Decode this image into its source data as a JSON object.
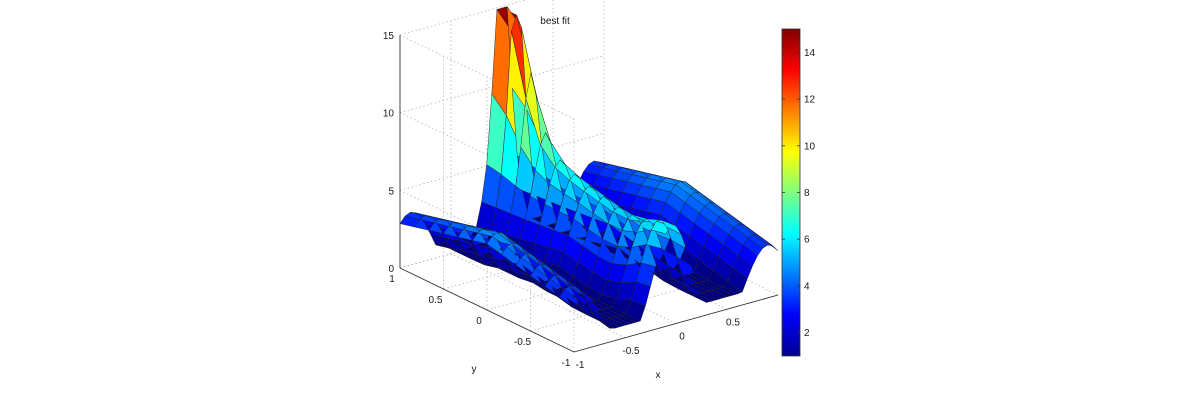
{
  "chart_data": {
    "type": "surface",
    "title": "best fit",
    "xlabel": "x",
    "ylabel": "y",
    "zlabel": "",
    "xlim": [
      -1,
      1
    ],
    "ylim": [
      -1,
      1
    ],
    "zlim": [
      0,
      15
    ],
    "x_ticks": [
      "-1",
      "-0.5",
      "0",
      "0.5",
      "1"
    ],
    "y_ticks": [
      "-1",
      "-0.5",
      "0",
      "0.5",
      "1"
    ],
    "z_ticks": [
      "0",
      "5",
      "10",
      "15"
    ],
    "grid": true,
    "colormap": "jet",
    "colorbar": {
      "location": "right",
      "range": [
        1,
        15
      ],
      "ticks": [
        "2",
        "4",
        "6",
        "8",
        "10",
        "12",
        "14"
      ]
    },
    "surface_features": [
      {
        "description": "peak",
        "x": 0,
        "y": 1,
        "z": 14.5
      },
      {
        "description": "peak",
        "x": -0.2,
        "y": -1,
        "z": 5.5
      }
    ]
  }
}
